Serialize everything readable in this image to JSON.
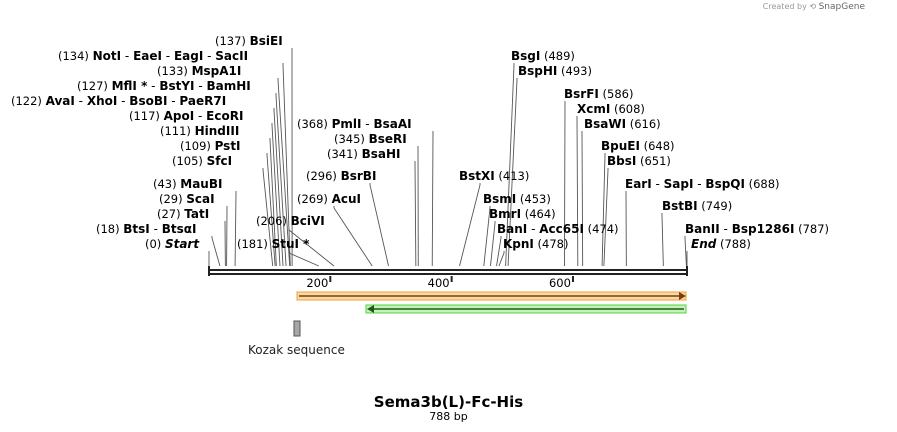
{
  "credit": {
    "created_by": "Created by",
    "brand": "SnapGene"
  },
  "title": "Sema3b(L)-Fc-His",
  "length_label": "788 bp",
  "sequence_length": 788,
  "ruler_ticks": [
    "200",
    "400",
    "600"
  ],
  "ruler_values": [
    200,
    400,
    600
  ],
  "feature": {
    "name": "Kozak sequence",
    "color": "#a0a0a0"
  },
  "arrows": [
    {
      "name": "orange-forward",
      "color": "#f0a030",
      "direction": "forward"
    },
    {
      "name": "green-reverse",
      "color": "#55d040",
      "direction": "reverse"
    }
  ],
  "sites": [
    {
      "id": "start",
      "pos": "(0)",
      "site": 0,
      "parts": [
        {
          "t": "Start",
          "style": "ital"
        }
      ]
    },
    {
      "id": "btsi",
      "pos": "(18)",
      "site": 18,
      "parts": [
        {
          "t": "BtsI"
        },
        {
          "t": "BtsαI"
        }
      ]
    },
    {
      "id": "tati",
      "pos": "(27)",
      "site": 27,
      "parts": [
        {
          "t": "TatI"
        }
      ]
    },
    {
      "id": "scai",
      "pos": "(29)",
      "site": 29,
      "parts": [
        {
          "t": "ScaI"
        }
      ]
    },
    {
      "id": "maubi",
      "pos": "(43)",
      "site": 43,
      "parts": [
        {
          "t": "MauBI"
        }
      ]
    },
    {
      "id": "sfci",
      "pos": "(105)",
      "site": 105,
      "parts": [
        {
          "t": "SfcI"
        }
      ]
    },
    {
      "id": "psti",
      "pos": "(109)",
      "site": 109,
      "parts": [
        {
          "t": "PstI"
        }
      ]
    },
    {
      "id": "hindiii",
      "pos": "(111)",
      "site": 111,
      "parts": [
        {
          "t": "HindIII"
        }
      ]
    },
    {
      "id": "apoi",
      "pos": "(117)",
      "site": 117,
      "parts": [
        {
          "t": "ApoI"
        },
        {
          "t": "EcoRI"
        }
      ]
    },
    {
      "id": "avai",
      "pos": "(122)",
      "site": 122,
      "parts": [
        {
          "t": "AvaI"
        },
        {
          "t": "XhoI"
        },
        {
          "t": "BsoBI"
        },
        {
          "t": "PaeR7I"
        }
      ]
    },
    {
      "id": "mfli",
      "pos": "(127)",
      "site": 127,
      "parts": [
        {
          "t": "MflI *"
        },
        {
          "t": "BstYI"
        },
        {
          "t": "BamHI"
        }
      ]
    },
    {
      "id": "mspa1i",
      "pos": "(133)",
      "site": 133,
      "parts": [
        {
          "t": "MspA1I"
        }
      ]
    },
    {
      "id": "noti",
      "pos": "(134)",
      "site": 134,
      "parts": [
        {
          "t": "NotI"
        },
        {
          "t": "EaeI"
        },
        {
          "t": "EagI"
        },
        {
          "t": "SacII"
        }
      ]
    },
    {
      "id": "bsiei",
      "pos": "(137)",
      "site": 137,
      "parts": [
        {
          "t": "BsiEI"
        }
      ]
    },
    {
      "id": "stui",
      "pos": "(181)",
      "site": 181,
      "parts": [
        {
          "t": "StuI *"
        }
      ]
    },
    {
      "id": "bcivi",
      "pos": "(206)",
      "site": 206,
      "parts": [
        {
          "t": "BciVI"
        }
      ]
    },
    {
      "id": "acui",
      "pos": "(269)",
      "site": 269,
      "parts": [
        {
          "t": "AcuI"
        }
      ]
    },
    {
      "id": "bsrbi",
      "pos": "(296)",
      "site": 296,
      "parts": [
        {
          "t": "BsrBI"
        }
      ]
    },
    {
      "id": "bsahi",
      "pos": "(341)",
      "site": 341,
      "parts": [
        {
          "t": "BsaHI"
        }
      ]
    },
    {
      "id": "bseri",
      "pos": "(345)",
      "site": 345,
      "parts": [
        {
          "t": "BseRI"
        }
      ]
    },
    {
      "id": "pmli",
      "pos": "(368)",
      "site": 368,
      "parts": [
        {
          "t": "PmlI"
        },
        {
          "t": "BsaAI"
        }
      ]
    },
    {
      "id": "bstxi",
      "pos": "(413)",
      "site": 413,
      "parts": [
        {
          "t": "BstXI"
        }
      ]
    },
    {
      "id": "bsmi",
      "pos": "(453)",
      "site": 453,
      "parts": [
        {
          "t": "BsmI"
        }
      ]
    },
    {
      "id": "bmri",
      "pos": "(464)",
      "site": 464,
      "parts": [
        {
          "t": "BmrI"
        }
      ]
    },
    {
      "id": "bani",
      "pos": "(474)",
      "site": 474,
      "parts": [
        {
          "t": "BanI"
        },
        {
          "t": "Acc65I"
        }
      ]
    },
    {
      "id": "kpni",
      "pos": "(478)",
      "site": 478,
      "parts": [
        {
          "t": "KpnI"
        }
      ]
    },
    {
      "id": "bsgi",
      "pos": "(489)",
      "site": 489,
      "parts": [
        {
          "t": "BsgI"
        }
      ]
    },
    {
      "id": "bsphi",
      "pos": "(493)",
      "site": 493,
      "parts": [
        {
          "t": "BspHI"
        }
      ]
    },
    {
      "id": "bsrfi",
      "pos": "(586)",
      "site": 586,
      "parts": [
        {
          "t": "BsrFI"
        }
      ]
    },
    {
      "id": "xcmi",
      "pos": "(608)",
      "site": 608,
      "parts": [
        {
          "t": "XcmI"
        }
      ]
    },
    {
      "id": "bsawi",
      "pos": "(616)",
      "site": 616,
      "parts": [
        {
          "t": "BsaWI"
        }
      ]
    },
    {
      "id": "bpuei",
      "pos": "(648)",
      "site": 648,
      "parts": [
        {
          "t": "BpuEI"
        }
      ]
    },
    {
      "id": "bbsi",
      "pos": "(651)",
      "site": 651,
      "parts": [
        {
          "t": "BbsI"
        }
      ]
    },
    {
      "id": "eari",
      "pos": "(688)",
      "site": 688,
      "parts": [
        {
          "t": "EarI"
        },
        {
          "t": "SapI"
        },
        {
          "t": "BspQI"
        }
      ]
    },
    {
      "id": "bstbi",
      "pos": "(749)",
      "site": 749,
      "parts": [
        {
          "t": "BstBI"
        }
      ]
    },
    {
      "id": "banii",
      "pos": "(787)",
      "site": 787,
      "parts": [
        {
          "t": "BanII"
        },
        {
          "t": "Bsp1286I"
        }
      ]
    },
    {
      "id": "end",
      "pos": "(788)",
      "site": 788,
      "parts": [
        {
          "t": "End",
          "style": "ital"
        }
      ]
    }
  ]
}
